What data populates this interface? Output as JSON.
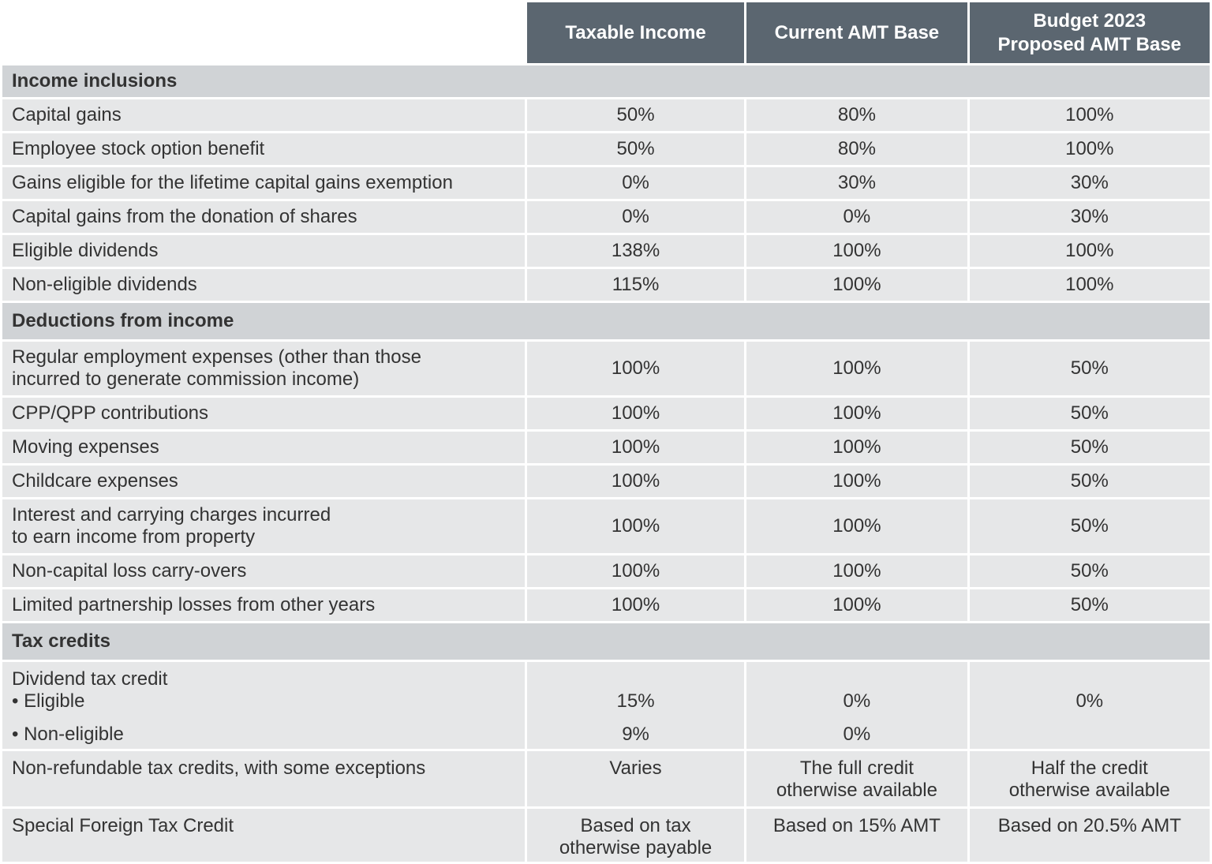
{
  "header": {
    "columns": [
      "",
      "Taxable Income",
      "Current AMT Base",
      "Budget 2023\nProposed AMT Base"
    ]
  },
  "colors": {
    "header_bg": "#5b6670",
    "section_bg": "#d0d3d6",
    "cell_bg": "#e6e7e8"
  },
  "rows": [
    {
      "type": "section",
      "label": "Income inclusions"
    },
    {
      "label": "Capital gains",
      "values": [
        "50%",
        "80%",
        "100%"
      ]
    },
    {
      "label": "Employee stock option benefit",
      "values": [
        "50%",
        "80%",
        "100%"
      ]
    },
    {
      "label": "Gains eligible for the lifetime capital gains exemption",
      "values": [
        "0%",
        "30%",
        "30%"
      ]
    },
    {
      "label": "Capital gains from the donation of shares",
      "values": [
        "0%",
        "0%",
        "30%"
      ]
    },
    {
      "label": "Eligible dividends",
      "values": [
        "138%",
        "100%",
        "100%"
      ]
    },
    {
      "label": "Non-eligible dividends",
      "values": [
        "115%",
        "100%",
        "100%"
      ]
    },
    {
      "type": "section",
      "label": "Deductions from income"
    },
    {
      "label": "Regular employment expenses (other than those\nincurred to generate commission income)",
      "values": [
        "100%",
        "100%",
        "50%"
      ]
    },
    {
      "label": "CPP/QPP contributions",
      "values": [
        "100%",
        "100%",
        "50%"
      ]
    },
    {
      "label": "Moving expenses",
      "values": [
        "100%",
        "100%",
        "50%"
      ]
    },
    {
      "label": "Childcare expenses",
      "values": [
        "100%",
        "100%",
        "50%"
      ]
    },
    {
      "label": "Interest and carrying charges incurred\nto earn income from property",
      "values": [
        "100%",
        "100%",
        "50%"
      ]
    },
    {
      "label": "Non-capital loss carry-overs",
      "values": [
        "100%",
        "100%",
        "50%"
      ]
    },
    {
      "label": "Limited partnership losses from other years",
      "values": [
        "100%",
        "100%",
        "50%"
      ]
    },
    {
      "type": "section",
      "label": "Tax credits"
    },
    {
      "type": "multi",
      "label": "Dividend tax credit",
      "sub": [
        {
          "label": "• Eligible",
          "values": [
            "15%",
            "0%",
            "0%"
          ]
        },
        {
          "label": "• Non-eligible",
          "values": [
            "9%",
            "0%",
            ""
          ]
        }
      ]
    },
    {
      "type": "top",
      "label": "Non-refundable tax credits, with some exceptions",
      "values": [
        "Varies",
        "The full credit\notherwise available",
        "Half the credit\notherwise available"
      ]
    },
    {
      "type": "top",
      "label": "Special Foreign Tax Credit",
      "values": [
        "Based on tax\notherwise payable",
        "Based on 15% AMT",
        "Based on 20.5% AMT"
      ]
    }
  ]
}
